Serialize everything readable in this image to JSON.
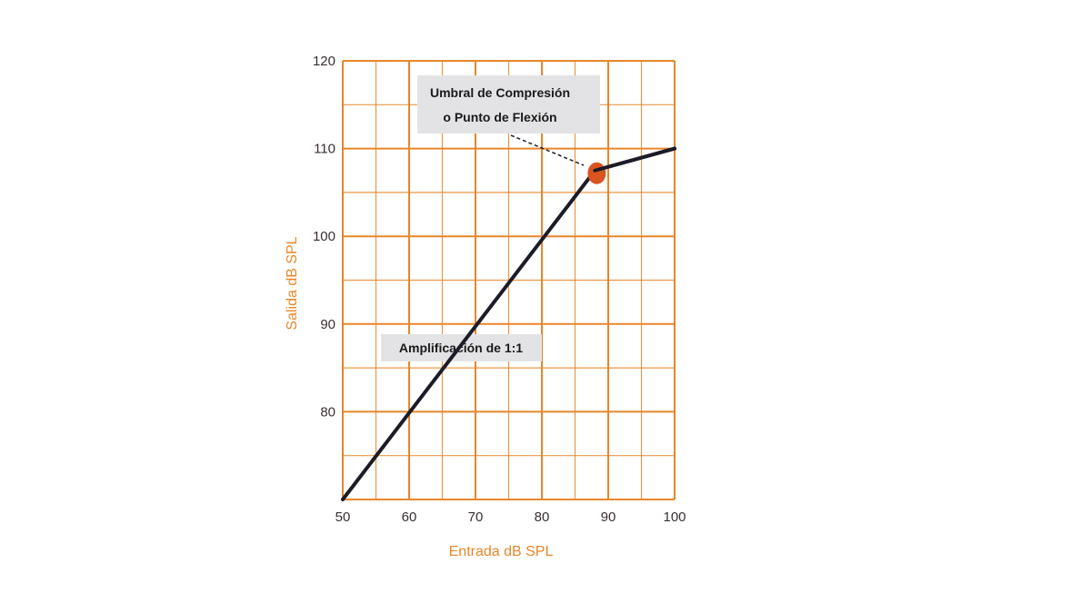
{
  "chart_data": {
    "type": "line",
    "title": "",
    "xlabel": "Entrada dB SPL",
    "ylabel": "Salida dB SPL",
    "xlim": [
      50,
      100
    ],
    "ylim": [
      70,
      120
    ],
    "x_ticks": [
      "50",
      "60",
      "70",
      "80",
      "90",
      "100"
    ],
    "y_ticks": [
      "80",
      "90",
      "100",
      "110",
      "120"
    ],
    "grid": true,
    "series": [
      {
        "x": [
          50,
          88,
          100
        ],
        "y": [
          70,
          107.5,
          110
        ]
      }
    ],
    "knee_point": {
      "x": 88,
      "y": 107.5
    },
    "annotations": {
      "compression_line1": "Umbral de Compresión",
      "compression_line2": "o Punto de Flexión",
      "linear": "Amplificación de 1:1"
    },
    "colors": {
      "grid": "#e8862a",
      "line": "#1c1c28",
      "marker": "#d9541e",
      "axis_label": "#e8862a",
      "annotation_bg": "#e3e3e5"
    }
  }
}
